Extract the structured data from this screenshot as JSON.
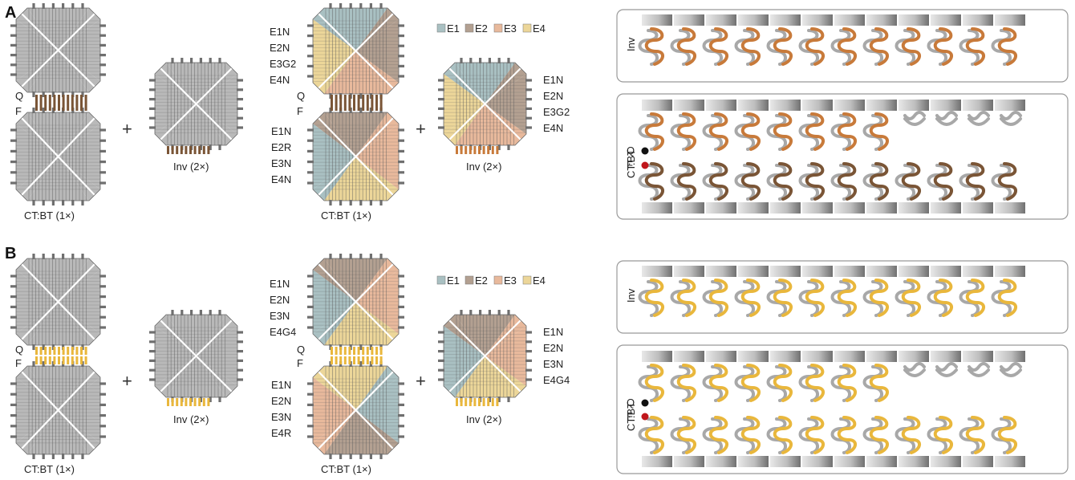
{
  "panels": [
    {
      "letter": "A",
      "left_tile_label": "CT:BT (1×)",
      "left_inv_label": "Inv (2×)",
      "q_label": "Q",
      "f_label": "F",
      "plus": "+",
      "mid_top_names": [
        "E1N",
        "E2N",
        "E3G2",
        "E4N"
      ],
      "mid_bottom_names": [
        "E1N",
        "E2R",
        "E3N",
        "E4N"
      ],
      "mid_tile_label": "CT:BT (1×)",
      "mid_inv_label": "Inv (2×)",
      "mid_inv_names": [
        "E1N",
        "E2N",
        "E3G2",
        "E4N"
      ],
      "legend": [
        "E1",
        "E2",
        "E3",
        "E4"
      ],
      "right_inv_label": "Inv",
      "right_ctbt_label": "CT:BT",
      "right_q": "Q",
      "right_f": "F",
      "staple_color": "#c87a3a",
      "staple_color_dark": "#7a5536"
    },
    {
      "letter": "B",
      "left_tile_label": "CT:BT (1×)",
      "left_inv_label": "Inv (2×)",
      "q_label": "Q",
      "f_label": "F",
      "plus": "+",
      "mid_top_names": [
        "E1N",
        "E2N",
        "E3N",
        "E4G4"
      ],
      "mid_bottom_names": [
        "E1N",
        "E2N",
        "E3N",
        "E4R"
      ],
      "mid_tile_label": "CT:BT (1×)",
      "mid_inv_label": "Inv (2×)",
      "mid_inv_names": [
        "E1N",
        "E2N",
        "E3N",
        "E4G4"
      ],
      "legend": [
        "E1",
        "E2",
        "E3",
        "E4"
      ],
      "right_inv_label": "Inv",
      "right_ctbt_label": "CT:BT",
      "right_q": "Q",
      "right_f": "F",
      "staple_color": "#e9b73c",
      "staple_color_dark": "#e9b73c"
    }
  ],
  "colors": {
    "E1": "#a9c0c2",
    "E2": "#b3a091",
    "E3": "#e8b99c",
    "E4": "#ecd699",
    "gray": "#b9b9b9",
    "helix_gray": "#a8a8a8",
    "quencher": "#111111",
    "fluorophore": "#c0161b"
  }
}
